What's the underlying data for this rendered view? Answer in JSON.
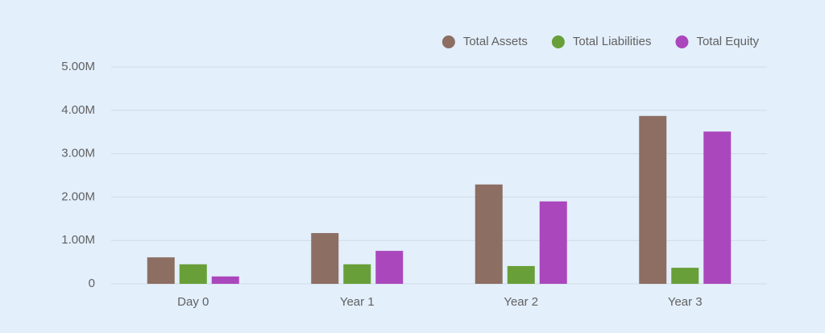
{
  "chart_data": {
    "type": "bar",
    "categories": [
      "Day 0",
      "Year 1",
      "Year 2",
      "Year 3"
    ],
    "series": [
      {
        "name": "Total Assets",
        "color": "#8d6e63",
        "values": [
          610000,
          1170000,
          2290000,
          3870000
        ]
      },
      {
        "name": "Total Liabilities",
        "color": "#689f38",
        "values": [
          450000,
          450000,
          410000,
          370000
        ]
      },
      {
        "name": "Total Equity",
        "color": "#ab47bc",
        "values": [
          170000,
          760000,
          1900000,
          3510000
        ]
      }
    ],
    "ylim": [
      0,
      5000000
    ],
    "yticks": [
      0,
      {
        "value": 1000000,
        "label": "1.00M"
      },
      {
        "value": 2000000,
        "label": "2.00M"
      },
      {
        "value": 3000000,
        "label": "3.00M"
      },
      {
        "value": 4000000,
        "label": "4.00M"
      },
      {
        "value": 5000000,
        "label": "5.00M"
      }
    ],
    "grid": true,
    "legend": "top-right"
  }
}
